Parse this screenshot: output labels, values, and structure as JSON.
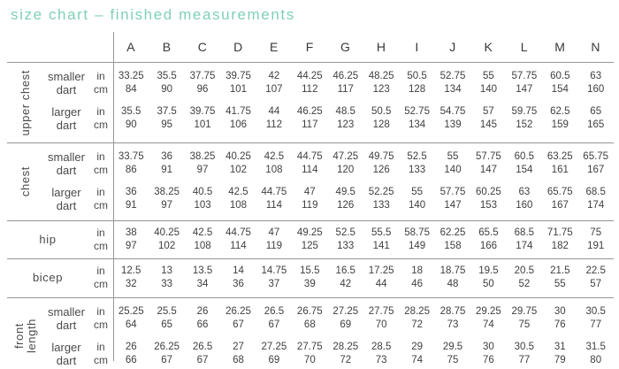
{
  "title": "size chart – finished measurements",
  "colors": {
    "accent": "#7fd1b4",
    "line": "#969696",
    "text": "#3b3b3b"
  },
  "chart_data": {
    "type": "table",
    "title": "size chart – finished measurements",
    "columns": [
      "A",
      "B",
      "C",
      "D",
      "E",
      "F",
      "G",
      "H",
      "I",
      "J",
      "K",
      "L",
      "M",
      "N"
    ],
    "units": [
      "in",
      "cm"
    ],
    "row_groups": [
      {
        "label": "upper chest",
        "rows": [
          {
            "label": "smaller dart",
            "in": [
              33.25,
              35.5,
              37.75,
              39.75,
              42,
              44.25,
              46.25,
              48.25,
              50.5,
              52.75,
              55,
              57.75,
              60.5,
              63
            ],
            "cm": [
              84,
              90,
              96,
              101,
              107,
              112,
              117,
              123,
              128,
              134,
              140,
              147,
              154,
              160
            ]
          },
          {
            "label": "larger dart",
            "in": [
              35.5,
              37.5,
              39.75,
              41.75,
              44,
              46.25,
              48.5,
              50.5,
              52.75,
              54.75,
              57,
              59.75,
              62.5,
              65
            ],
            "cm": [
              90,
              95,
              101,
              106,
              112,
              117,
              123,
              128,
              134,
              139,
              145,
              152,
              159,
              165
            ]
          }
        ]
      },
      {
        "label": "chest",
        "rows": [
          {
            "label": "smaller dart",
            "in": [
              33.75,
              36,
              38.25,
              40.25,
              42.5,
              44.75,
              47.25,
              49.75,
              52.5,
              55,
              57.75,
              60.5,
              63.25,
              65.75
            ],
            "cm": [
              86,
              91,
              97,
              102,
              108,
              114,
              120,
              126,
              133,
              140,
              147,
              154,
              161,
              167
            ]
          },
          {
            "label": "larger dart",
            "in": [
              36,
              38.25,
              40.5,
              42.5,
              44.75,
              47,
              49.5,
              52.25,
              55,
              57.75,
              60.25,
              63,
              65.75,
              68.5
            ],
            "cm": [
              91,
              97,
              103,
              108,
              114,
              119,
              126,
              133,
              140,
              147,
              153,
              160,
              167,
              174
            ]
          }
        ]
      },
      {
        "label": "hip",
        "rows": [
          {
            "label": "",
            "in": [
              38,
              40.25,
              42.5,
              44.75,
              47,
              49.25,
              52.5,
              55.5,
              58.75,
              62.25,
              65.5,
              68.5,
              71.75,
              75
            ],
            "cm": [
              97,
              102,
              108,
              114,
              119,
              125,
              133,
              141,
              149,
              158,
              166,
              174,
              182,
              191
            ]
          }
        ]
      },
      {
        "label": "bicep",
        "rows": [
          {
            "label": "",
            "in": [
              12.5,
              13,
              13.5,
              14,
              14.75,
              15.5,
              16.5,
              17.25,
              18,
              18.75,
              19.5,
              20.5,
              21.5,
              22.5
            ],
            "cm": [
              32,
              33,
              34,
              36,
              37,
              39,
              42,
              44,
              46,
              48,
              50,
              52,
              55,
              57
            ]
          }
        ]
      },
      {
        "label": "front\nlength",
        "rows": [
          {
            "label": "smaller dart",
            "in": [
              25.25,
              25.5,
              26,
              26.25,
              26.5,
              26.75,
              27.25,
              27.75,
              28.25,
              28.75,
              29.25,
              29.75,
              30,
              30.5
            ],
            "cm": [
              64,
              65,
              66,
              67,
              67,
              68,
              69,
              70,
              72,
              73,
              74,
              75,
              76,
              77
            ]
          },
          {
            "label": "larger dart",
            "in": [
              26,
              26.25,
              26.5,
              27,
              27.25,
              27.75,
              28.25,
              28.5,
              29,
              29.5,
              30,
              30.5,
              31,
              31.5
            ],
            "cm": [
              66,
              67,
              67,
              68,
              69,
              70,
              72,
              73,
              74,
              75,
              76,
              77,
              79,
              80
            ]
          }
        ]
      }
    ]
  }
}
